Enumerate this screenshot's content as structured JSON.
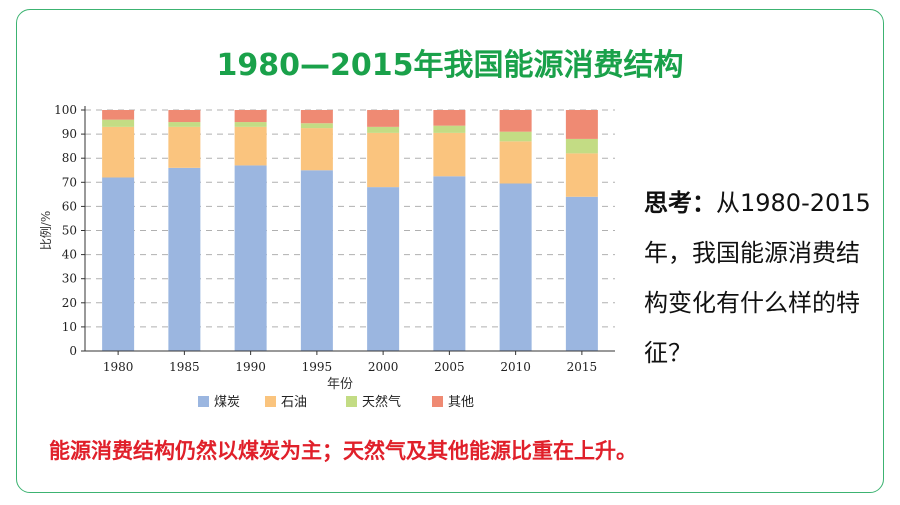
{
  "title": "1980—2015年我国能源消费结构",
  "think": {
    "label": "思考：",
    "text": "从1980-2015年，我国能源消费结构变化有什么样的特征？"
  },
  "conclusion": "能源消费结构仍然以煤炭为主；天然气及其他能源比重在上升。",
  "chart_data": {
    "type": "bar",
    "stacked": true,
    "categories": [
      "1980",
      "1985",
      "1990",
      "1995",
      "2000",
      "2005",
      "2010",
      "2015"
    ],
    "series": [
      {
        "name": "煤炭",
        "color": "#9bb6e0",
        "values": [
          72,
          76,
          77,
          75,
          68,
          72.5,
          69.5,
          64
        ]
      },
      {
        "name": "石油",
        "color": "#fac47e",
        "values": [
          21,
          17,
          16,
          17.5,
          22.5,
          18,
          17.5,
          18
        ]
      },
      {
        "name": "天然气",
        "color": "#c3dc84",
        "values": [
          3,
          2,
          2,
          2,
          2.5,
          3,
          4,
          6
        ]
      },
      {
        "name": "其他",
        "color": "#ef8a73",
        "values": [
          4,
          5,
          5,
          5.5,
          7,
          6.5,
          9,
          12
        ]
      }
    ],
    "xlabel": "年份",
    "ylabel": "比例/%",
    "ylim": [
      0,
      100
    ],
    "yticks": [
      "0",
      "10",
      "20",
      "30",
      "40",
      "50",
      "60",
      "70",
      "80",
      "90",
      "100"
    ],
    "grid": true,
    "legend_position": "bottom"
  }
}
